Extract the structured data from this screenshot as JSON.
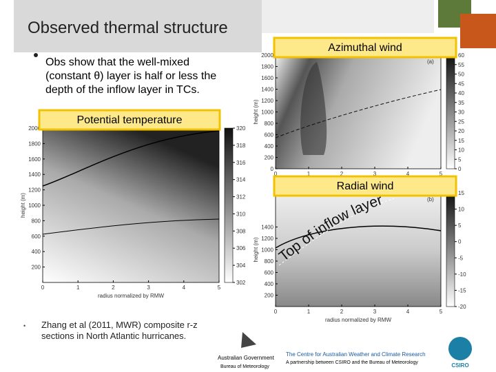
{
  "title": "Observed thermal structure",
  "bullet": [
    "Obs show that the well-mixed",
    "(constant θ) layer is half or less the",
    "depth of the inflow layer in TCs."
  ],
  "citation": [
    "Zhang et al (2011, MWR) composite r-z",
    "sections in North Atlantic hurricanes."
  ],
  "annotation": "Top of inflow layer",
  "panels": [
    {
      "label": "Azimuthal wind",
      "tag": "(a)",
      "ylabel": "height (m)",
      "xlabel": null,
      "xlim": [
        0,
        5
      ],
      "xticks": [
        0,
        1,
        2,
        3,
        4,
        5
      ],
      "ylim": [
        0,
        2000
      ],
      "yticks": [
        0,
        200,
        400,
        600,
        800,
        1000,
        1200,
        1400,
        1600,
        1800,
        2000
      ],
      "clim": [
        0,
        60
      ],
      "cticks": [
        0,
        5,
        10,
        15,
        20,
        25,
        30,
        35,
        40,
        45,
        50,
        55,
        60
      ]
    },
    {
      "label": "Potential temperature",
      "tag": null,
      "ylabel": "height (m)",
      "xlabel": "radius normalized by RMW",
      "xlim": [
        0,
        5
      ],
      "xticks": [
        0,
        1,
        2,
        3,
        4,
        5
      ],
      "ylim": [
        0,
        2000
      ],
      "yticks": [
        200,
        400,
        600,
        800,
        1000,
        1200,
        1400,
        1600,
        1800,
        2000
      ],
      "clim": [
        302,
        320
      ],
      "cticks": [
        302,
        304,
        306,
        308,
        310,
        312,
        314,
        316,
        318,
        320
      ]
    },
    {
      "label": "Radial wind",
      "tag": "(b)",
      "ylabel": "height (m)",
      "xlabel": "radius normalized by RMW",
      "xlim": [
        0,
        5
      ],
      "xticks": [
        0,
        1,
        2,
        3,
        4,
        5
      ],
      "ylim": [
        0,
        2000
      ],
      "yticks": [
        200,
        400,
        600,
        800,
        1000,
        1200,
        1400
      ],
      "clim": [
        -20,
        15
      ],
      "cticks": [
        -20,
        -15,
        -10,
        -5,
        0,
        5,
        10,
        15
      ]
    }
  ],
  "footer": {
    "gov": "Australian Government",
    "bom": "Bureau of Meteorology",
    "centre": "The Centre for Australian Weather and Climate Research",
    "partner": "A partnership between CSIRO and the Bureau of Meteorology",
    "csiro": "CSIRO"
  }
}
